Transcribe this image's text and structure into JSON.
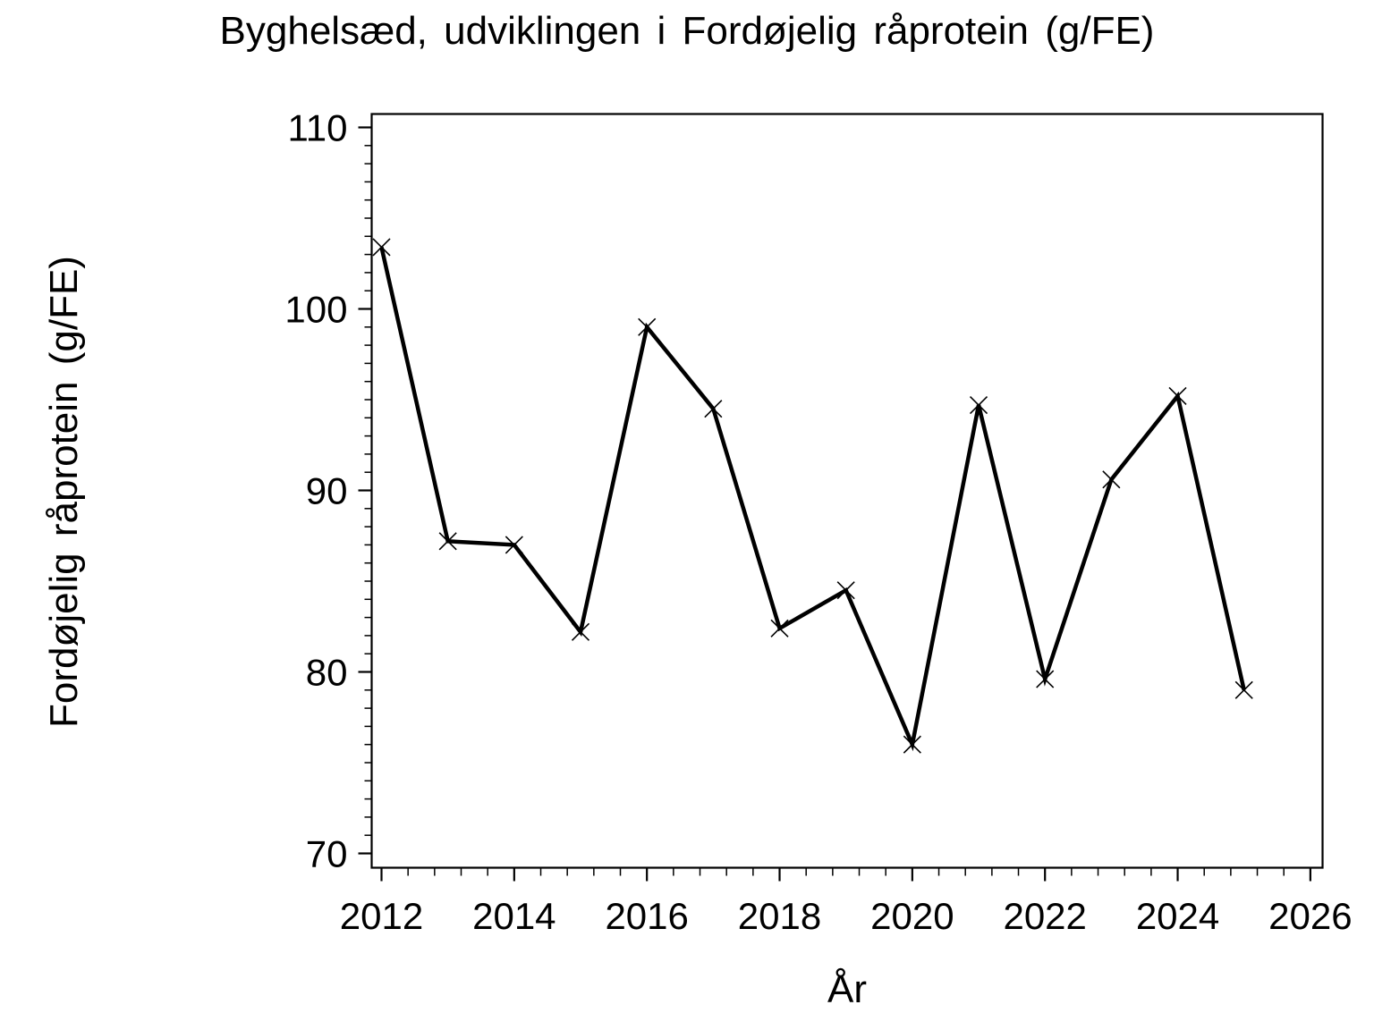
{
  "figure": {
    "background": "#ffffff",
    "foreground": "#000000"
  },
  "chart_data": {
    "type": "line",
    "title": "Byghelsæd, udviklingen i Fordøjelig råprotein (g/FE)",
    "xlabel": "År",
    "ylabel": "Fordøjelig råprotein (g/FE)",
    "series": [
      {
        "name": "Fordøjelig råprotein",
        "x": [
          2012,
          2013,
          2014,
          2015,
          2016,
          2017,
          2018,
          2019,
          2020,
          2021,
          2022,
          2023,
          2024,
          2025
        ],
        "values": [
          103.4,
          87.2,
          87.0,
          82.2,
          99.0,
          94.5,
          82.4,
          84.5,
          76.0,
          94.7,
          79.6,
          90.6,
          95.2,
          79.0
        ]
      }
    ],
    "xticks": [
      2012,
      2014,
      2016,
      2018,
      2020,
      2022,
      2024,
      2026
    ],
    "yticks": [
      70,
      80,
      90,
      100,
      110
    ],
    "xlim": [
      2011.85,
      2026.2
    ],
    "ylim": [
      69.2,
      110.75
    ],
    "x_minor_step": 0.4,
    "y_minor_step": 1,
    "marker": "x",
    "line_color": "#000000",
    "marker_color": "#000000",
    "grid": false,
    "legend": "none"
  }
}
